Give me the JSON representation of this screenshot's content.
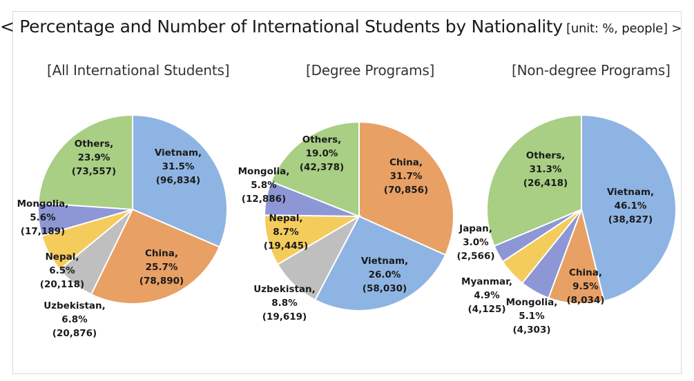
{
  "title": "< Percentage and Number of International Students by Nationality",
  "unit": "[unit: %, people] >",
  "colors": {
    "Vietnam": "#8eb4e3",
    "China": "#e8a065",
    "Uzbekistan": "#bfbfbf",
    "Nepal": "#f4cc5c",
    "Mongolia": "#8d97d6",
    "Japan": "#8d97d6",
    "Myanmar": "#f4cc5c",
    "Others": "#a8cf84"
  },
  "chart_data": [
    {
      "type": "pie",
      "title": "[All International Students]",
      "slices": [
        {
          "name": "Vietnam",
          "percent": 31.5,
          "count": 96834,
          "label": [
            "Vietnam,",
            "31.5%",
            "(96,834)"
          ]
        },
        {
          "name": "China",
          "percent": 25.7,
          "count": 78890,
          "label": [
            "China,",
            "25.7%",
            "(78,890)"
          ]
        },
        {
          "name": "Uzbekistan",
          "percent": 6.8,
          "count": 20876,
          "label": [
            "Uzbekistan,",
            "6.8%",
            "(20,876)"
          ]
        },
        {
          "name": "Nepal",
          "percent": 6.5,
          "count": 20118,
          "label": [
            "Nepal,",
            "6.5%",
            "(20,118)"
          ]
        },
        {
          "name": "Mongolia",
          "percent": 5.6,
          "count": 17189,
          "label": [
            "Mongolia,",
            "5.6%",
            "(17,189)"
          ]
        },
        {
          "name": "Others",
          "percent": 23.9,
          "count": 73557,
          "label": [
            "Others,",
            "23.9%",
            "(73,557)"
          ]
        }
      ]
    },
    {
      "type": "pie",
      "title": "[Degree Programs]",
      "slices": [
        {
          "name": "China",
          "percent": 31.7,
          "count": 70856,
          "label": [
            "China,",
            "31.7%",
            "(70,856)"
          ]
        },
        {
          "name": "Vietnam",
          "percent": 26.0,
          "count": 58030,
          "label": [
            "Vietnam,",
            "26.0%",
            "(58,030)"
          ]
        },
        {
          "name": "Uzbekistan",
          "percent": 8.8,
          "count": 19619,
          "label": [
            "Uzbekistan,",
            "8.8%",
            "(19,619)"
          ]
        },
        {
          "name": "Nepal",
          "percent": 8.7,
          "count": 19445,
          "label": [
            "Nepal,",
            "8.7%",
            "(19,445)"
          ]
        },
        {
          "name": "Mongolia",
          "percent": 5.8,
          "count": 12886,
          "label": [
            "Mongolia,",
            "5.8%",
            "(12,886)"
          ]
        },
        {
          "name": "Others",
          "percent": 19.0,
          "count": 42378,
          "label": [
            "Others,",
            "19.0%",
            "(42,378)"
          ]
        }
      ]
    },
    {
      "type": "pie",
      "title": "[Non-degree Programs]",
      "slices": [
        {
          "name": "Vietnam",
          "percent": 46.1,
          "count": 38827,
          "label": [
            "Vietnam,",
            "46.1%",
            "(38,827)"
          ]
        },
        {
          "name": "China",
          "percent": 9.5,
          "count": 8034,
          "label": [
            "China,",
            "9.5%",
            "(8,034)"
          ]
        },
        {
          "name": "Mongolia",
          "percent": 5.1,
          "count": 4303,
          "label": [
            "Mongolia,",
            "5.1%",
            "(4,303)"
          ]
        },
        {
          "name": "Myanmar",
          "percent": 4.9,
          "count": 4125,
          "label": [
            "Myanmar,",
            "4.9%",
            "(4,125)"
          ]
        },
        {
          "name": "Japan",
          "percent": 3.0,
          "count": 2566,
          "label": [
            "Japan,",
            "3.0%",
            "(2,566)"
          ]
        },
        {
          "name": "Others",
          "percent": 31.3,
          "count": 26418,
          "label": [
            "Others,",
            "31.3%",
            "(26,418)"
          ]
        }
      ]
    }
  ]
}
